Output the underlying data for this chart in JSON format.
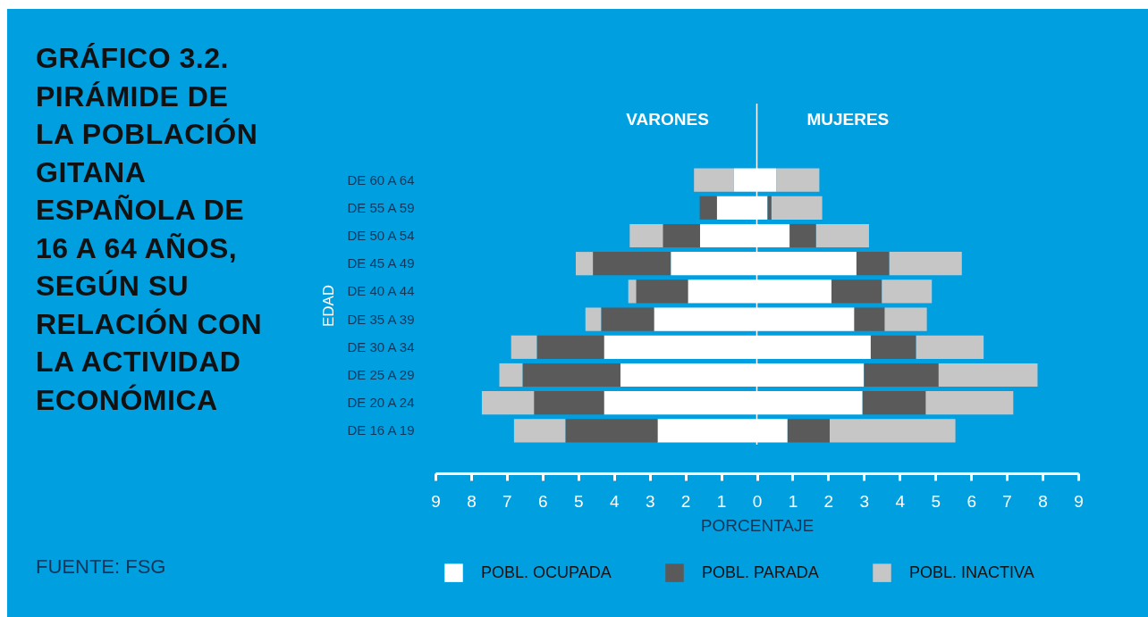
{
  "chart_data": {
    "type": "bar",
    "orientation": "horizontal",
    "stacked": true,
    "title": "GRÁFICO 3.2. PIRÁMIDE DE LA POBLACIÓN GITANA ESPAÑOLA DE 16 A 64 AÑOS, SEGÚN SU RELACIÓN CON LA ACTIVIDAD ECONÓMICA",
    "xlabel": "PORCENTAJE",
    "ylabel": "EDAD",
    "categories": [
      "DE 60 A 64",
      "DE 55 A 59",
      "DE 50 A 54",
      "DE 45 A 49",
      "DE 40 A 44",
      "DE 35 A 39",
      "DE 30 A 34",
      "DE 25 A 29",
      "DE 20 A 24",
      "DE 16 A 19"
    ],
    "series": [
      {
        "color": "#ffffff",
        "values": [
          -0.64,
          -1.12,
          -1.59,
          -2.41,
          -1.93,
          -2.88,
          -4.28,
          -3.82,
          -4.28,
          -2.78
        ]
      },
      {
        "color": "#5a5a5a",
        "values": [
          0,
          -0.48,
          -1.04,
          -2.18,
          -1.45,
          -1.48,
          -1.88,
          -2.74,
          -1.96,
          -2.58
        ]
      },
      {
        "color": "#c6c6c6",
        "values": [
          -1.12,
          0,
          -0.93,
          -0.48,
          -0.22,
          -0.44,
          -0.72,
          -0.65,
          -1.46,
          -1.44
        ]
      },
      {
        "name": "POBL. OCUPADA",
        "color": "#ffffff",
        "values": [
          0.54,
          0.3,
          0.92,
          2.79,
          2.09,
          2.73,
          3.19,
          3.0,
          2.96,
          0.86
        ]
      },
      {
        "name": "POBL. PARADA",
        "color": "#5a5a5a",
        "values": [
          0,
          0.11,
          0.74,
          0.92,
          1.41,
          0.85,
          1.27,
          2.09,
          1.77,
          1.18
        ]
      },
      {
        "name": "POBL. INACTIVA",
        "color": "#c6c6c6",
        "values": [
          1.21,
          1.42,
          1.48,
          2.03,
          1.4,
          1.18,
          1.89,
          2.77,
          2.45,
          3.52
        ]
      }
    ],
    "xlim": [
      -9,
      9
    ],
    "xticks": [
      {
        "value": -9,
        "label": "9"
      },
      {
        "value": -8,
        "label": "8"
      },
      {
        "value": -7,
        "label": "7"
      },
      {
        "value": -6,
        "label": "6"
      },
      {
        "value": -5,
        "label": "5"
      },
      {
        "value": -4,
        "label": "4"
      },
      {
        "value": -3,
        "label": "3"
      },
      {
        "value": -2,
        "label": "2"
      },
      {
        "value": -1,
        "label": "1"
      },
      0,
      1,
      2,
      3,
      4,
      5,
      6,
      7,
      8,
      9
    ],
    "ref_lines": [
      {
        "axis": "x",
        "value": 0,
        "color": "#ffffff"
      }
    ],
    "legend": "bottom",
    "grid": false,
    "annotations": [
      "VARONES",
      "MUJERES",
      "FUENTE: FSG"
    ]
  }
}
